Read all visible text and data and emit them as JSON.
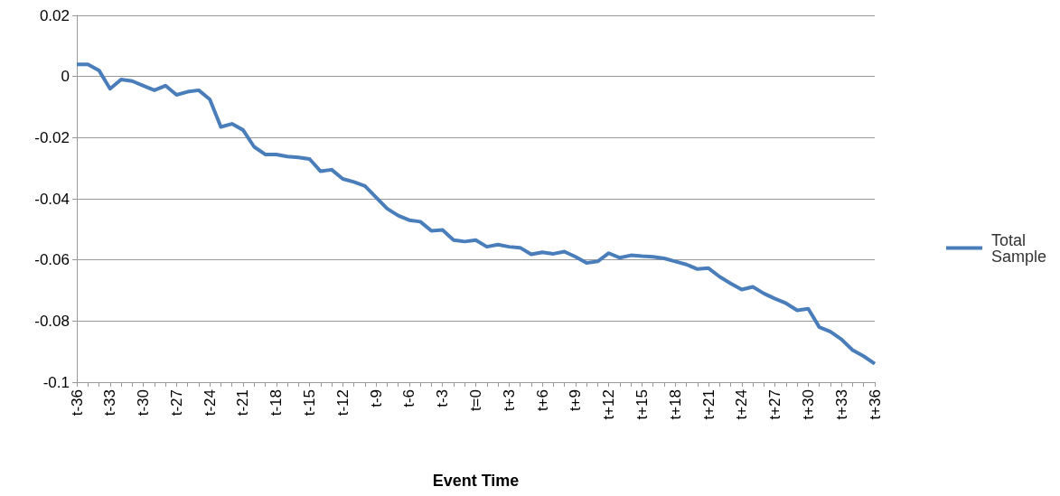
{
  "chart_data": {
    "type": "line",
    "xlabel": "Event Time",
    "categories": [
      "t-36",
      null,
      null,
      "t-33",
      null,
      null,
      "t-30",
      null,
      null,
      "t-27",
      null,
      null,
      "t-24",
      null,
      null,
      "t-21",
      null,
      null,
      "t-18",
      null,
      null,
      "t-15",
      null,
      null,
      "t-12",
      null,
      null,
      "t-9",
      null,
      null,
      "t-6",
      null,
      null,
      "t-3",
      null,
      null,
      "t=0",
      null,
      null,
      "t+3",
      null,
      null,
      "t+6",
      null,
      null,
      "t+9",
      null,
      null,
      "t+12",
      null,
      null,
      "t+15",
      null,
      null,
      "t+18",
      null,
      null,
      "t+21",
      null,
      null,
      "t+24",
      null,
      null,
      "t+27",
      null,
      null,
      "t+30",
      null,
      null,
      "t+33",
      null,
      null,
      "t+36"
    ],
    "series": [
      {
        "name": "Total Sample",
        "color": "#4a7ebb",
        "values": [
          0.004,
          0.004,
          0.002,
          -0.004,
          -0.001,
          -0.0015,
          -0.003,
          -0.0045,
          -0.003,
          -0.006,
          -0.005,
          -0.0045,
          -0.0075,
          -0.0165,
          -0.0155,
          -0.0175,
          -0.023,
          -0.0255,
          -0.0255,
          -0.0262,
          -0.0265,
          -0.027,
          -0.031,
          -0.0305,
          -0.0335,
          -0.0345,
          -0.0358,
          -0.0395,
          -0.0432,
          -0.0455,
          -0.047,
          -0.0475,
          -0.0505,
          -0.0502,
          -0.0535,
          -0.054,
          -0.0535,
          -0.0557,
          -0.055,
          -0.0557,
          -0.056,
          -0.0582,
          -0.0575,
          -0.058,
          -0.0573,
          -0.059,
          -0.061,
          -0.0605,
          -0.0578,
          -0.0593,
          -0.0585,
          -0.0588,
          -0.059,
          -0.0595,
          -0.0605,
          -0.0615,
          -0.063,
          -0.0627,
          -0.0655,
          -0.0677,
          -0.0697,
          -0.0688,
          -0.071,
          -0.0727,
          -0.0742,
          -0.0765,
          -0.076,
          -0.082,
          -0.0835,
          -0.086,
          -0.0895,
          -0.0915,
          -0.094
        ]
      }
    ],
    "ylim": [
      -0.1,
      0.02
    ],
    "yticks": [
      -0.1,
      -0.08,
      -0.06,
      -0.04,
      -0.02,
      0,
      0.02
    ],
    "grid": "y",
    "legend": "right",
    "marker": "none",
    "line_style": "solid"
  }
}
